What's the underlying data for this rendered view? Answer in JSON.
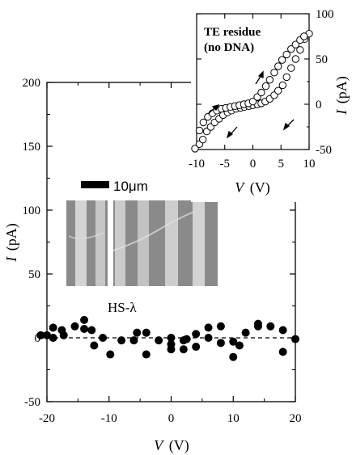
{
  "chart_data": [
    {
      "type": "scatter",
      "xlabel_symbol": "V",
      "xlabel_unit": "(V)",
      "ylabel_symbol": "I",
      "ylabel_unit": "(pA)",
      "xlim": [
        -20,
        20
      ],
      "ylim": [
        -50,
        200
      ],
      "x_ticks": [
        -20,
        -10,
        0,
        10,
        20
      ],
      "y_ticks": [
        -50,
        0,
        50,
        100,
        150,
        200
      ],
      "grid": false,
      "reference_line": 0,
      "marker": "filled-circle",
      "annotation": "HS-λ",
      "scale_bar_label": "10μm",
      "series": [
        {
          "points": [
            [
              -21,
              2
            ],
            [
              -20,
              2
            ],
            [
              -19,
              8
            ],
            [
              -19,
              0
            ],
            [
              -17.6,
              6
            ],
            [
              -17.3,
              2
            ],
            [
              -15.5,
              9
            ],
            [
              -14,
              14
            ],
            [
              -14,
              7
            ],
            [
              -12.8,
              6
            ],
            [
              -12.4,
              -6
            ],
            [
              -11,
              0
            ],
            [
              -9.8,
              -13
            ],
            [
              -8,
              -2
            ],
            [
              -6,
              -2
            ],
            [
              -5.5,
              4
            ],
            [
              -4,
              4
            ],
            [
              -4,
              -13
            ],
            [
              -2,
              -2
            ],
            [
              0,
              -5
            ],
            [
              0,
              -9
            ],
            [
              0,
              0
            ],
            [
              2,
              -2
            ],
            [
              2,
              -9
            ],
            [
              2.5,
              -1
            ],
            [
              4,
              -7
            ],
            [
              4,
              3
            ],
            [
              6,
              8
            ],
            [
              6,
              0
            ],
            [
              8,
              9
            ],
            [
              8,
              -4
            ],
            [
              10,
              -3
            ],
            [
              10,
              -15
            ],
            [
              11,
              -6
            ],
            [
              12,
              4
            ],
            [
              14,
              11
            ],
            [
              14,
              9
            ],
            [
              16,
              9
            ],
            [
              18,
              6
            ],
            [
              18,
              -11
            ],
            [
              20,
              -1
            ]
          ]
        }
      ]
    },
    {
      "type": "scatter",
      "title_line1": "TE residue",
      "title_line2": "(no DNA)",
      "xlabel_symbol": "V",
      "xlabel_unit": "(V)",
      "ylabel_symbol": "I",
      "ylabel_unit": "(pA)",
      "xlim": [
        -10,
        10
      ],
      "ylim": [
        -50,
        100
      ],
      "x_ticks": [
        -10,
        -5,
        0,
        5,
        10
      ],
      "y_ticks": [
        -50,
        0,
        50,
        100
      ],
      "grid": false,
      "marker": "open-circle",
      "arrows": "hysteresis loop direction",
      "series": [
        {
          "points": [
            [
              -10.3,
              -49
            ],
            [
              -9.5,
              -44
            ],
            [
              -8.9,
              -39
            ],
            [
              -8.2,
              -30
            ],
            [
              -7.5,
              -25
            ],
            [
              -6.8,
              -20
            ],
            [
              -6.0,
              -16
            ],
            [
              -5.3,
              -12
            ],
            [
              -4.5,
              -9
            ],
            [
              -3.8,
              -7
            ],
            [
              -3.0,
              -5
            ],
            [
              -2.2,
              -4
            ],
            [
              -1.5,
              -3
            ],
            [
              -0.7,
              -2
            ],
            [
              0.0,
              -1
            ],
            [
              0.8,
              0
            ],
            [
              1.5,
              1
            ],
            [
              2.2,
              3
            ],
            [
              3.0,
              6
            ],
            [
              3.8,
              10
            ],
            [
              4.5,
              15
            ],
            [
              5.3,
              21
            ],
            [
              6.0,
              30
            ],
            [
              6.8,
              40
            ],
            [
              7.6,
              50
            ],
            [
              8.4,
              60
            ],
            [
              9.2,
              72
            ],
            [
              10.0,
              78
            ],
            [
              -9.5,
              -29
            ],
            [
              -8.8,
              -20
            ],
            [
              -8.0,
              -14
            ],
            [
              -7.2,
              -10
            ],
            [
              -6.4,
              -7
            ],
            [
              -5.6,
              -5
            ],
            [
              -4.8,
              -4
            ],
            [
              -4.0,
              -3
            ],
            [
              -3.2,
              -2
            ],
            [
              -2.4,
              -1
            ],
            [
              -1.6,
              0
            ],
            [
              -0.8,
              1
            ],
            [
              0.0,
              3
            ],
            [
              0.8,
              8
            ],
            [
              1.5,
              13
            ],
            [
              2.3,
              20
            ],
            [
              3.0,
              27
            ],
            [
              3.8,
              35
            ],
            [
              4.5,
              42
            ],
            [
              5.2,
              49
            ],
            [
              6.0,
              55
            ],
            [
              6.8,
              61
            ],
            [
              7.6,
              66
            ],
            [
              8.4,
              71
            ],
            [
              9.1,
              75
            ]
          ]
        }
      ]
    }
  ]
}
